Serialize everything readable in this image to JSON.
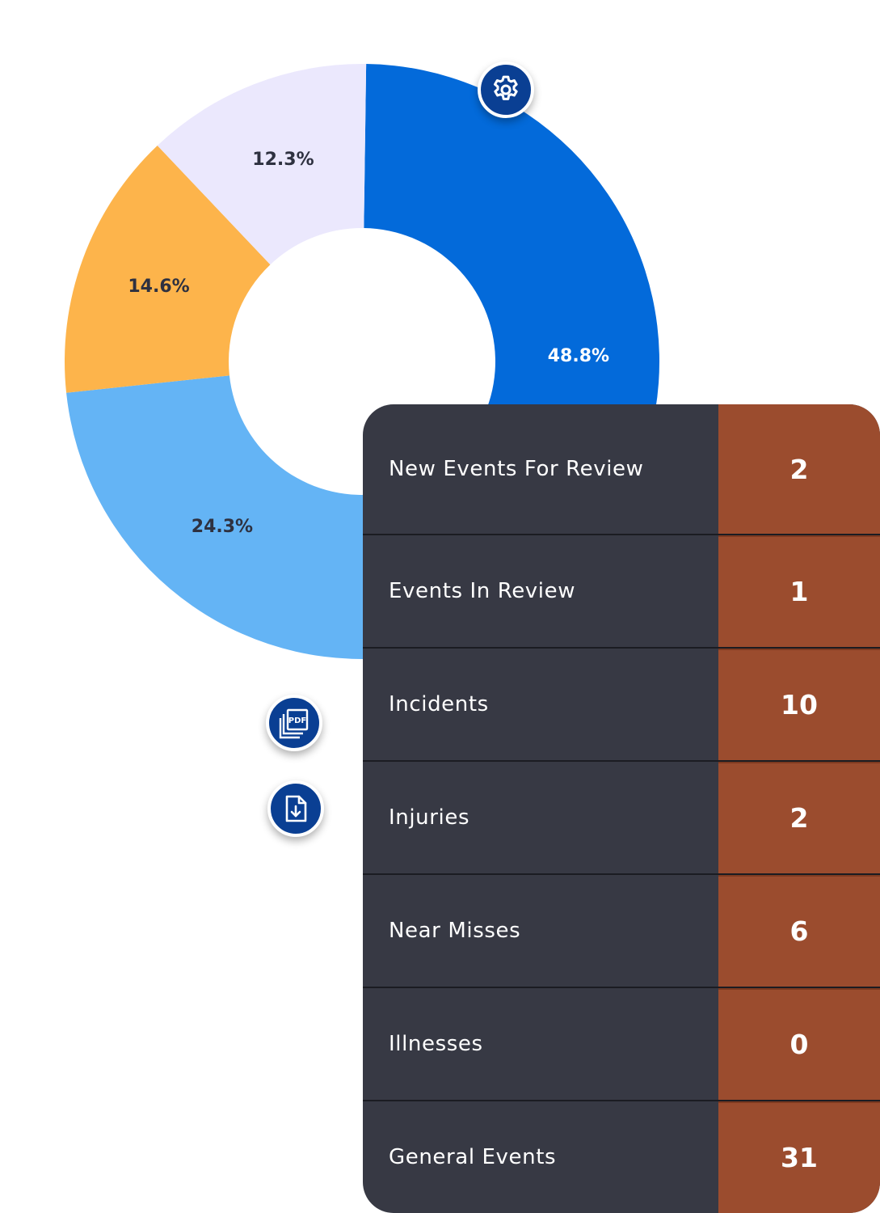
{
  "chart_data": {
    "type": "pie",
    "variant": "donut",
    "slices": [
      {
        "label": "48.8%",
        "value": 48.8,
        "color": "#036ada",
        "label_color": "#ffffff"
      },
      {
        "label": "24.3%",
        "value": 24.3,
        "color": "#64b4f5",
        "label_color": "#2e3140"
      },
      {
        "label": "14.6%",
        "value": 14.6,
        "color": "#fdb44b",
        "label_color": "#2e3140"
      },
      {
        "label": "12.3%",
        "value": 12.3,
        "color": "#ebe8fd",
        "label_color": "#2e3140"
      }
    ]
  },
  "actions": {
    "settings_icon": "gear-icon",
    "pdf_icon": "pdf-icon",
    "export_icon": "file-download-icon",
    "button_color": "#0a3f93"
  },
  "summary": {
    "label_bg": "#373944",
    "value_bg": "#9b4c2e",
    "rows": [
      {
        "label": "New Events For Review",
        "value": "2"
      },
      {
        "label": "Events In Review",
        "value": "1"
      },
      {
        "label": "Incidents",
        "value": "10"
      },
      {
        "label": "Injuries",
        "value": "2"
      },
      {
        "label": "Near Misses",
        "value": "6"
      },
      {
        "label": "Illnesses",
        "value": "0"
      },
      {
        "label": "General Events",
        "value": "31"
      }
    ]
  }
}
